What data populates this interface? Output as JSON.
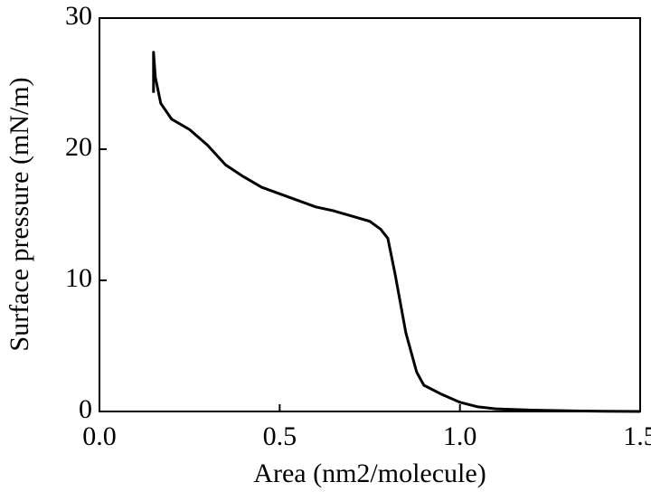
{
  "chart_data": {
    "type": "line",
    "xlabel": "Area (nm2/molecule)",
    "ylabel": "Surface pressure (mN/m)",
    "x": [
      0.15,
      0.15,
      0.155,
      0.17,
      0.2,
      0.25,
      0.3,
      0.35,
      0.4,
      0.45,
      0.5,
      0.55,
      0.6,
      0.65,
      0.7,
      0.75,
      0.78,
      0.8,
      0.82,
      0.85,
      0.88,
      0.9,
      0.95,
      1.0,
      1.05,
      1.1,
      1.2,
      1.3,
      1.4,
      1.5
    ],
    "series": [
      {
        "color": "#000000",
        "values": [
          24.3,
          27.4,
          25.5,
          23.5,
          22.3,
          21.5,
          20.3,
          18.8,
          17.9,
          17.1,
          16.6,
          16.1,
          15.6,
          15.3,
          14.9,
          14.5,
          13.9,
          13.2,
          10.5,
          6.0,
          3.0,
          2.0,
          1.3,
          0.7,
          0.35,
          0.2,
          0.1,
          0.05,
          0.02,
          0.0
        ]
      }
    ],
    "xlim": [
      0,
      1.5
    ],
    "xticks": [
      {
        "value": 0,
        "label": "0.0"
      },
      0.5,
      {
        "value": 1,
        "label": "1.0"
      },
      1.5
    ],
    "ylim": [
      0,
      30
    ],
    "yticks": [
      0,
      10,
      20,
      30
    ],
    "grid": false
  }
}
